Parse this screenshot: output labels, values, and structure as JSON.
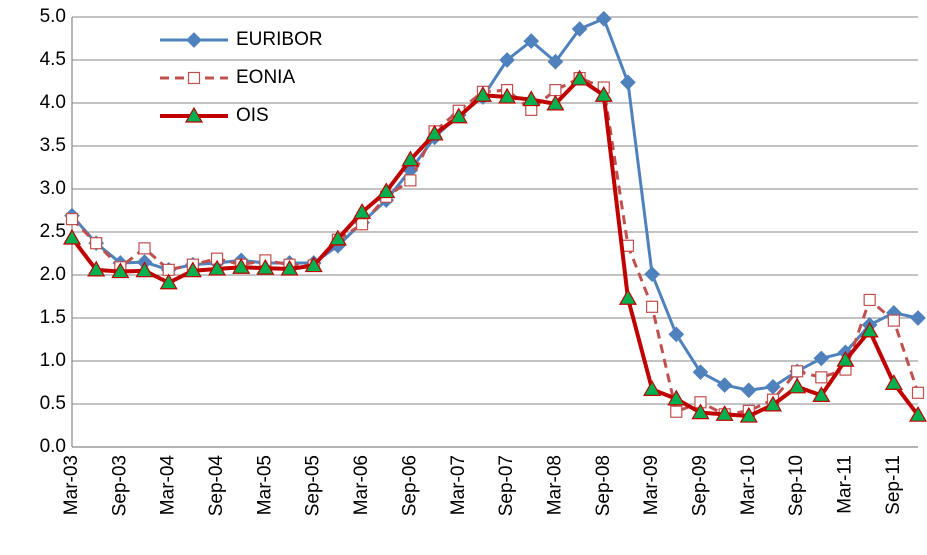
{
  "chart_data": {
    "type": "line",
    "categories": [
      "Mar-03",
      null,
      "Sep-03",
      null,
      "Mar-04",
      null,
      "Sep-04",
      null,
      "Mar-05",
      null,
      "Sep-05",
      null,
      "Mar-06",
      null,
      "Sep-06",
      null,
      "Mar-07",
      null,
      "Sep-07",
      null,
      "Mar-08",
      null,
      "Sep-08",
      null,
      "Mar-09",
      null,
      "Sep-09",
      null,
      "Mar-10",
      null,
      "Sep-10",
      null,
      "Mar-11",
      null,
      "Sep-11",
      null
    ],
    "series": [
      {
        "name": "EURIBOR",
        "color": "#4f81bd",
        "marker": "diamond",
        "marker_color": "#4f81bd",
        "dashed": false,
        "values": [
          2.69,
          2.37,
          2.14,
          2.15,
          2.06,
          2.12,
          2.14,
          2.17,
          2.14,
          2.14,
          2.14,
          2.34,
          2.61,
          2.87,
          3.22,
          3.6,
          3.86,
          4.07,
          4.5,
          4.72,
          4.48,
          4.86,
          4.98,
          4.24,
          2.01,
          1.31,
          0.87,
          0.72,
          0.66,
          0.7,
          0.88,
          1.03,
          1.1,
          1.42,
          1.56,
          1.5
        ]
      },
      {
        "name": "EONIA",
        "color": "#c0504d",
        "marker": "square",
        "marker_color": "#ffffff",
        "dashed": true,
        "values": [
          2.65,
          2.37,
          2.09,
          2.31,
          2.06,
          2.12,
          2.19,
          2.12,
          2.17,
          2.12,
          2.11,
          2.41,
          2.59,
          2.91,
          3.1,
          3.67,
          3.91,
          4.13,
          4.15,
          3.92,
          4.15,
          4.29,
          4.18,
          2.34,
          1.63,
          0.41,
          0.52,
          0.38,
          0.42,
          0.55,
          0.88,
          0.81,
          0.9,
          1.71,
          1.47,
          0.63
        ]
      },
      {
        "name": "OIS",
        "color": "#c00000",
        "marker": "triangle",
        "marker_color": "#00b050",
        "dashed": false,
        "values": [
          2.43,
          2.06,
          2.04,
          2.05,
          1.91,
          2.05,
          2.07,
          2.09,
          2.08,
          2.07,
          2.11,
          2.42,
          2.73,
          2.97,
          3.34,
          3.64,
          3.84,
          4.09,
          4.07,
          4.04,
          3.99,
          4.28,
          4.09,
          1.73,
          0.67,
          0.56,
          0.4,
          0.38,
          0.36,
          0.49,
          0.7,
          0.6,
          1.01,
          1.35,
          0.74,
          0.37
        ]
      }
    ],
    "ylim": [
      0,
      5
    ],
    "yticks": [
      {
        "value": 0,
        "label": "0.0"
      },
      0.5,
      {
        "value": 1,
        "label": "1.0"
      },
      1.5,
      {
        "value": 2,
        "label": "2.0"
      },
      2.5,
      {
        "value": 3,
        "label": "3.0"
      },
      3.5,
      {
        "value": 4,
        "label": "4.0"
      },
      4.5,
      {
        "value": 5,
        "label": "5.0"
      }
    ],
    "grid": true,
    "legend": "upper-left"
  }
}
